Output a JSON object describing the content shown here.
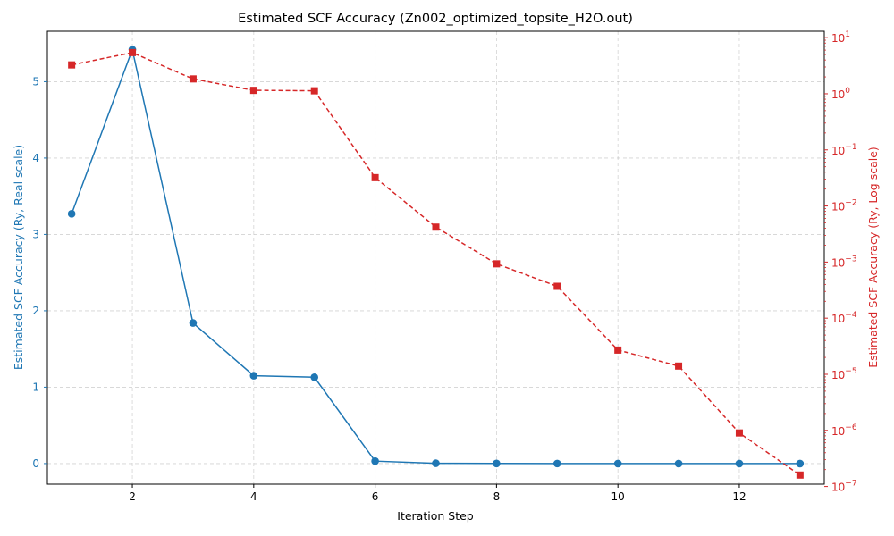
{
  "chart_data": {
    "type": "line",
    "title": "Estimated SCF Accuracy (Zn002_optimized_topsite_H2O.out)",
    "xlabel": "Iteration Step",
    "ylabel_left": "Estimated SCF Accuracy (Ry, Real scale)",
    "ylabel_right": "Estimated SCF Accuracy (Ry, Log scale)",
    "x": [
      1,
      2,
      3,
      4,
      5,
      6,
      7,
      8,
      9,
      10,
      11,
      12,
      13
    ],
    "x_ticks": [
      2,
      4,
      6,
      8,
      10,
      12
    ],
    "xlim": [
      0.6,
      13.4
    ],
    "ylim_left": [
      -0.27,
      5.66
    ],
    "y_ticks_left": [
      0,
      1,
      2,
      3,
      4,
      5
    ],
    "ylim_right": [
      1.1e-07,
      13
    ],
    "y_ticks_right_exponents": [
      1,
      0,
      -1,
      -2,
      -3,
      -4,
      -5,
      -6,
      -7
    ],
    "log_base_label": "10",
    "grid": true,
    "series": [
      {
        "axis": "left",
        "scale": "linear",
        "color": "#1f77b4",
        "marker": "circle",
        "linestyle": "solid",
        "values": [
          3.27,
          5.42,
          1.84,
          1.15,
          1.13,
          0.032,
          0.0042,
          0.00093,
          0.00037,
          2.7e-05,
          1.4e-05,
          9e-07,
          1.6e-07
        ]
      },
      {
        "axis": "right",
        "scale": "log",
        "color": "#d62728",
        "marker": "square",
        "linestyle": "dashed",
        "values": [
          3.27,
          5.42,
          1.84,
          1.15,
          1.13,
          0.032,
          0.0042,
          0.00093,
          0.00037,
          2.7e-05,
          1.4e-05,
          9e-07,
          1.6e-07
        ]
      }
    ]
  }
}
